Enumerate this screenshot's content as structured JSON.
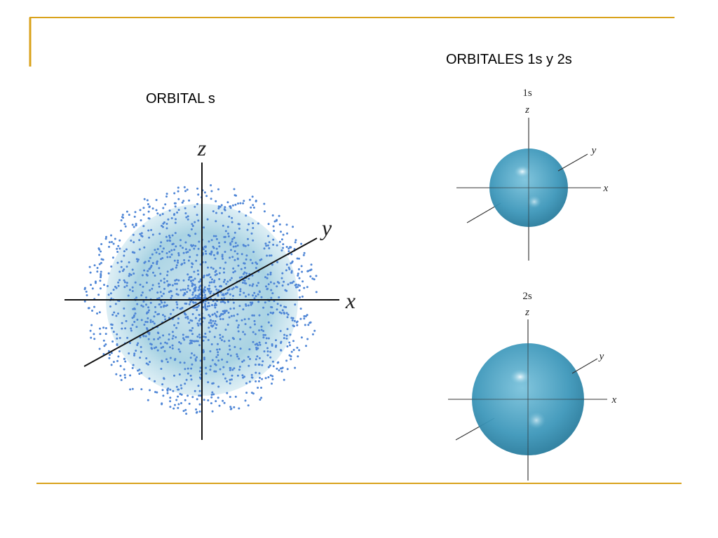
{
  "slide": {
    "title_left": "ORBITAL s",
    "title_right": "ORBITALES 1s y 2s",
    "left_diagram": {
      "axes": {
        "z": "z",
        "y": "y",
        "x": "x"
      }
    },
    "orbital_1s": {
      "label": "1s",
      "axes": {
        "z": "z",
        "y": "y",
        "x": "x"
      }
    },
    "orbital_2s": {
      "label": "2s",
      "axes": {
        "z": "z",
        "y": "y",
        "x": "x"
      }
    }
  }
}
